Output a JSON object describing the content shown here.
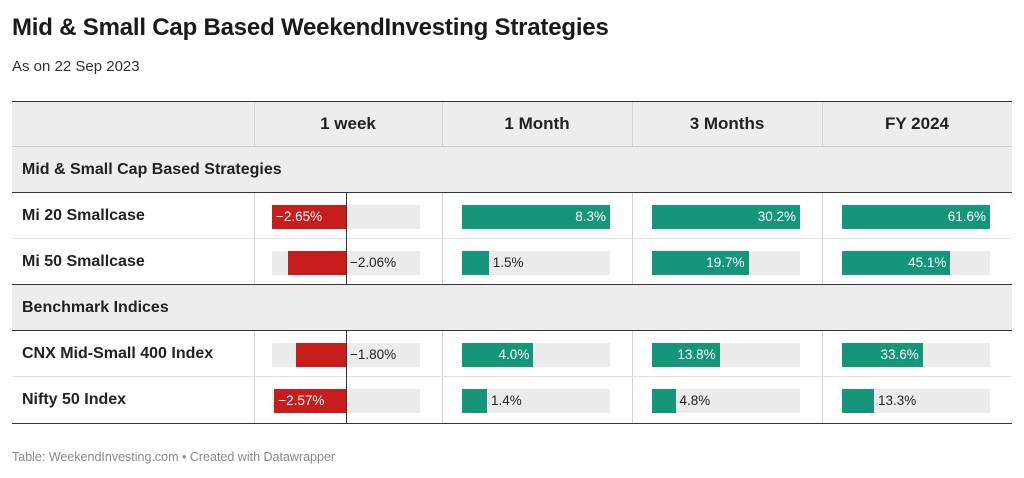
{
  "title": "Mid & Small Cap Based WeekendInvesting Strategies",
  "subtitle": "As on 22 Sep 2023",
  "footer": "Table: WeekendInvesting.com • Created with Datawrapper",
  "colors": {
    "negative": "#c71e1d",
    "positive": "#15967a",
    "bar_bg": "#ebebeb",
    "header_bg": "#ededed"
  },
  "chart_data": {
    "type": "table",
    "columns": [
      "1 week",
      "1 Month",
      "3 Months",
      "FY 2024"
    ],
    "column_ranges": [
      [
        -2.65,
        2.65
      ],
      [
        0,
        8.3
      ],
      [
        0,
        30.2
      ],
      [
        0,
        61.6
      ]
    ],
    "groups": [
      {
        "name": "Mid & Small Cap Based Strategies",
        "rows": [
          {
            "name": "Mi 20 Smallcase",
            "values": [
              -2.65,
              8.3,
              30.2,
              61.6
            ],
            "labels": [
              "−2.65%",
              "8.3%",
              "30.2%",
              "61.6%"
            ]
          },
          {
            "name": "Mi 50 Smallcase",
            "values": [
              -2.06,
              1.5,
              19.7,
              45.1
            ],
            "labels": [
              "−2.06%",
              "1.5%",
              "19.7%",
              "45.1%"
            ]
          }
        ]
      },
      {
        "name": "Benchmark Indices",
        "rows": [
          {
            "name": "CNX Mid-Small 400 Index",
            "values": [
              -1.8,
              4.0,
              13.8,
              33.6
            ],
            "labels": [
              "−1.80%",
              "4.0%",
              "13.8%",
              "33.6%"
            ]
          },
          {
            "name": "Nifty 50 Index",
            "values": [
              -2.57,
              1.4,
              4.8,
              13.3
            ],
            "labels": [
              "−2.57%",
              "1.4%",
              "4.8%",
              "13.3%"
            ]
          }
        ]
      }
    ]
  }
}
